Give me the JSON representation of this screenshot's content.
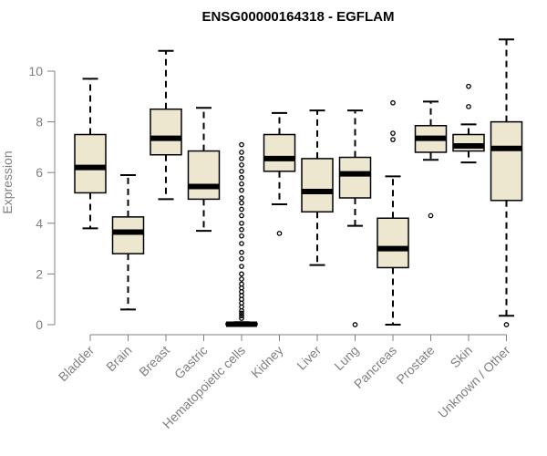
{
  "chart_data": {
    "type": "box",
    "title": "ENSG00000164318 - EGFLAM",
    "xlabel": "",
    "ylabel": "Expression",
    "ylim": [
      0,
      11.3
    ],
    "yticks": [
      0,
      2,
      4,
      6,
      8,
      10
    ],
    "box_fill": "#eee7cf",
    "categories": [
      "Bladder",
      "Brain",
      "Breast",
      "Gastric",
      "Hematopoietic cells",
      "Kidney",
      "Liver",
      "Lung",
      "Pancreas",
      "Prostate",
      "Skin",
      "Unknown / Other"
    ],
    "boxes": [
      {
        "whisker_low": 3.8,
        "q1": 5.2,
        "median": 6.2,
        "q3": 7.5,
        "whisker_high": 9.7,
        "outliers": []
      },
      {
        "whisker_low": 0.6,
        "q1": 2.8,
        "median": 3.65,
        "q3": 4.25,
        "whisker_high": 5.9,
        "outliers": []
      },
      {
        "whisker_low": 4.95,
        "q1": 6.7,
        "median": 7.35,
        "q3": 8.5,
        "whisker_high": 10.8,
        "outliers": []
      },
      {
        "whisker_low": 3.7,
        "q1": 4.95,
        "median": 5.45,
        "q3": 6.85,
        "whisker_high": 8.55,
        "outliers": []
      },
      {
        "whisker_low": 0.0,
        "q1": 0.0,
        "median": 0.02,
        "q3": 0.05,
        "whisker_high": 0.1,
        "outliers": [
          0.25,
          0.35,
          0.45,
          0.55,
          0.7,
          0.85,
          1.0,
          1.15,
          1.3,
          1.45,
          1.6,
          1.8,
          2.0,
          2.3,
          2.6,
          2.85,
          3.2,
          3.5,
          3.75,
          4.0,
          4.3,
          4.55,
          4.8,
          5.0,
          5.3,
          5.55,
          5.8,
          6.05,
          6.3,
          6.55,
          6.8,
          7.1
        ]
      },
      {
        "whisker_low": 4.75,
        "q1": 6.05,
        "median": 6.55,
        "q3": 7.5,
        "whisker_high": 8.35,
        "outliers": [
          3.6
        ]
      },
      {
        "whisker_low": 2.35,
        "q1": 4.45,
        "median": 5.25,
        "q3": 6.55,
        "whisker_high": 8.45,
        "outliers": []
      },
      {
        "whisker_low": 3.9,
        "q1": 5.0,
        "median": 5.95,
        "q3": 6.6,
        "whisker_high": 8.45,
        "outliers": [
          0.0
        ]
      },
      {
        "whisker_low": 0.0,
        "q1": 2.25,
        "median": 3.0,
        "q3": 4.2,
        "whisker_high": 5.85,
        "outliers": [
          7.3,
          7.55,
          8.75
        ]
      },
      {
        "whisker_low": 6.5,
        "q1": 6.8,
        "median": 7.35,
        "q3": 7.85,
        "whisker_high": 8.8,
        "outliers": [
          4.3
        ]
      },
      {
        "whisker_low": 6.4,
        "q1": 6.85,
        "median": 7.05,
        "q3": 7.5,
        "whisker_high": 7.9,
        "outliers": [
          8.6,
          9.4
        ]
      },
      {
        "whisker_low": 0.35,
        "q1": 4.9,
        "median": 6.95,
        "q3": 8.0,
        "whisker_high": 11.25,
        "outliers": [
          0.0
        ]
      }
    ]
  }
}
